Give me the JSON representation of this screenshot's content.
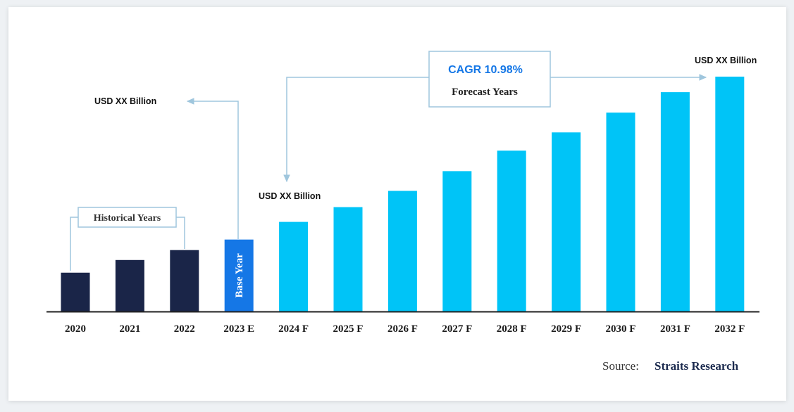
{
  "colors": {
    "historical": "#1a2548",
    "base": "#1577e6",
    "forecast": "#00c4f7",
    "connector": "#9fc6dd",
    "cagr_text": "#1577e6",
    "axis": "#222222"
  },
  "chart_data": {
    "type": "bar",
    "categories": [
      "2020",
      "2021",
      "2022",
      "2023 E",
      "2024 F",
      "2025 F",
      "2026 F",
      "2027 F",
      "2028 F",
      "2029 F",
      "2030 F",
      "2031 F",
      "2032 F"
    ],
    "values": [
      55,
      73,
      87,
      102,
      127,
      148,
      171,
      199,
      228,
      254,
      282,
      311,
      333
    ],
    "value_unit": "relative bar height (no axis scale printed)",
    "groups": [
      "historical",
      "historical",
      "historical",
      "base",
      "forecast",
      "forecast",
      "forecast",
      "forecast",
      "forecast",
      "forecast",
      "forecast",
      "forecast",
      "forecast"
    ],
    "base_year_label": "Base Year",
    "ylim": [
      0,
      340
    ],
    "grid": false,
    "annotations": {
      "historical_label": "Historical Years",
      "usd_start": "USD XX Billion",
      "usd_mid": "USD XX Billion",
      "usd_end": "USD XX Billion",
      "cagr": "CAGR 10.98%",
      "forecast_label": "Forecast Years"
    }
  },
  "source": {
    "prefix": "Source:",
    "name": "Straits Research"
  }
}
